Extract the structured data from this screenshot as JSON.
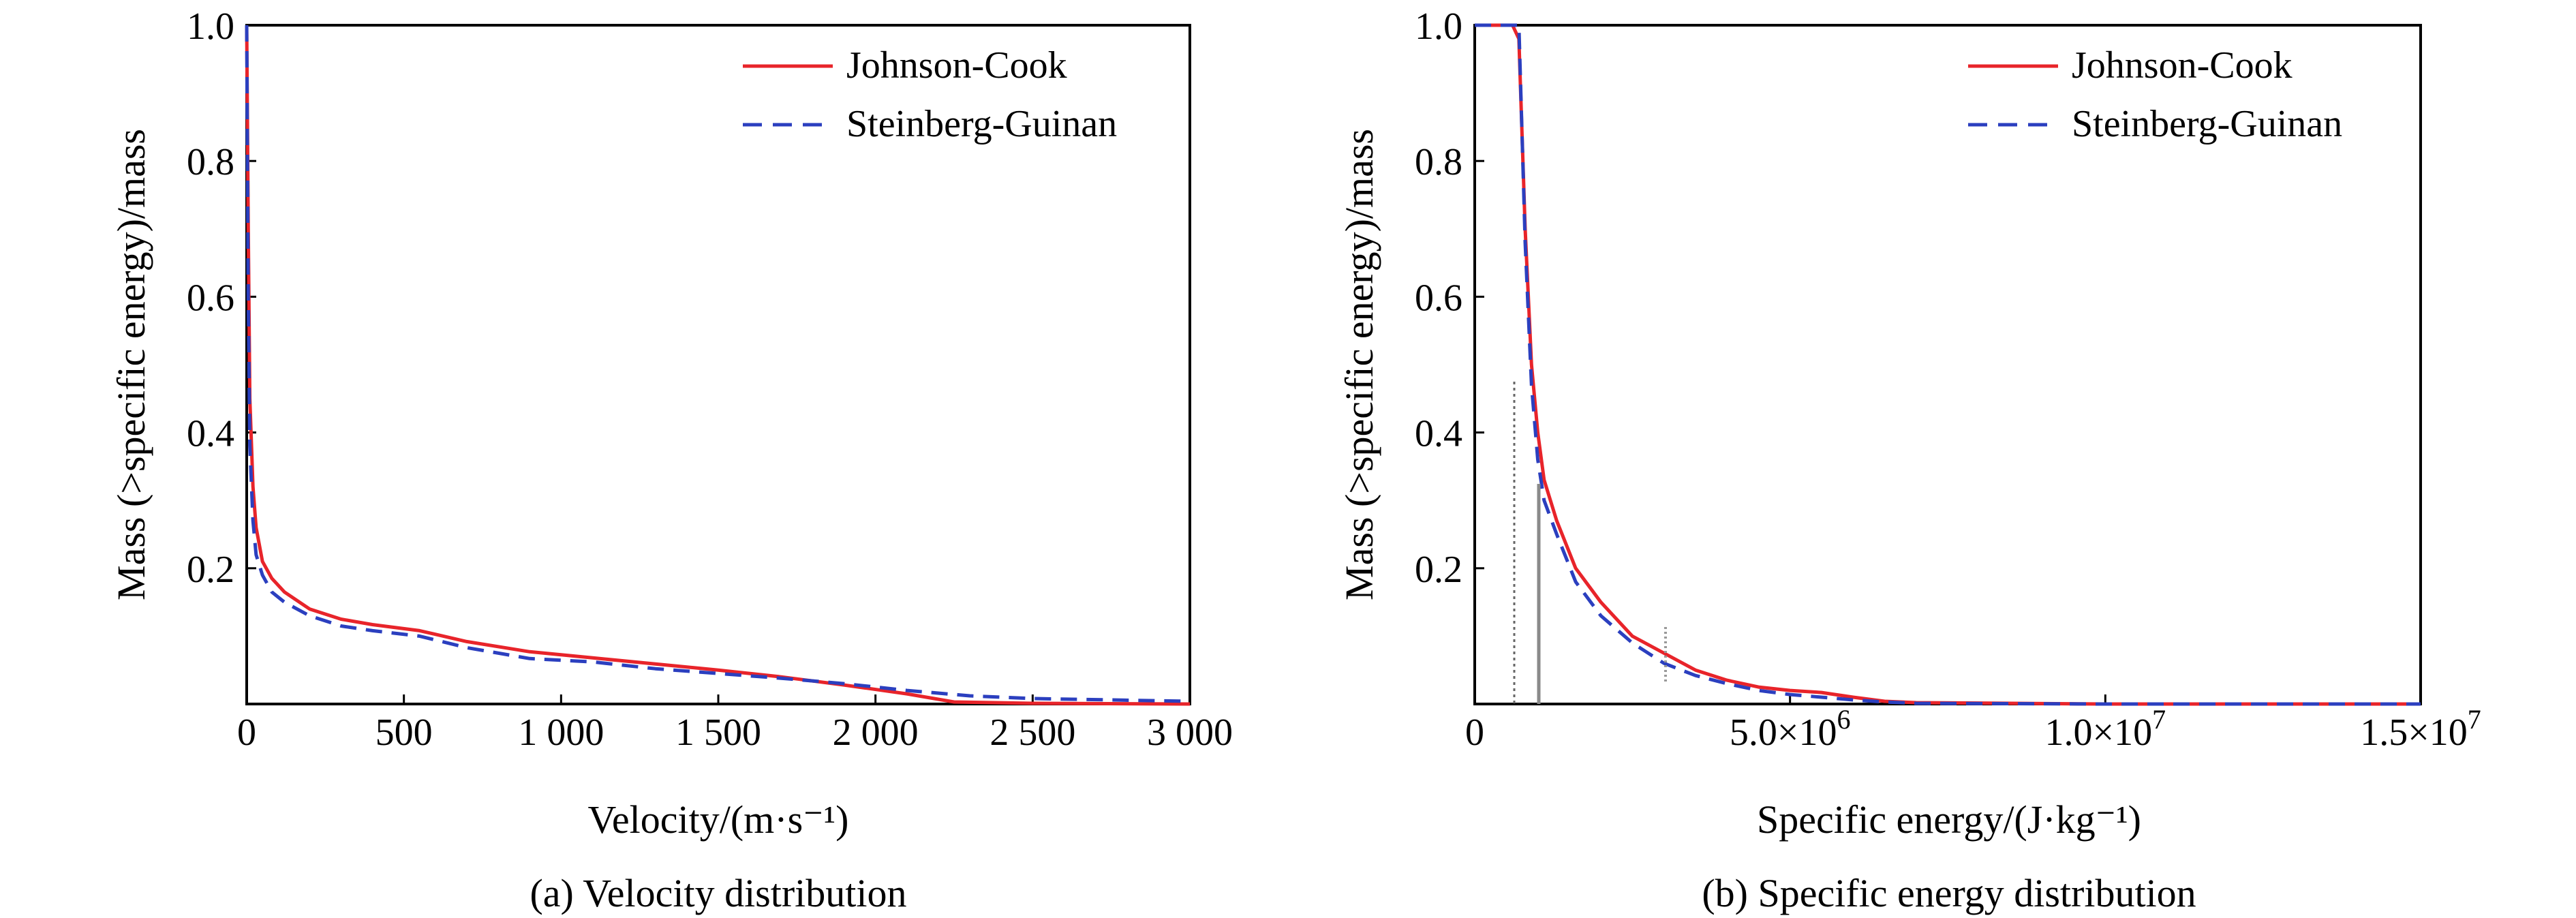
{
  "charts": [
    {
      "caption": "(a) Velocity distribution",
      "xlabel": "Velocity/(m·s⁻¹)",
      "ylabel": "Mass (>specific energy)/mass",
      "legend_entries": [
        "Johnson-Cook",
        "Steinberg-Guinan"
      ]
    },
    {
      "caption": "(b) Specific energy distribution",
      "xlabel": "Specific energy/(J·kg⁻¹)",
      "ylabel": "Mass (>specific energy)/mass",
      "legend_entries": [
        "Johnson-Cook",
        "Steinberg-Guinan"
      ]
    }
  ],
  "chart_data": [
    {
      "type": "line",
      "caption": "(a) Velocity distribution",
      "xlabel": "Velocity/(m·s⁻¹)",
      "ylabel": "Mass (>specific energy)/mass",
      "xlim": [
        0,
        3000
      ],
      "ylim": [
        0,
        1.0
      ],
      "x_ticks": [
        0,
        500,
        1000,
        1500,
        2000,
        2500,
        3000
      ],
      "x_tick_labels": [
        "0",
        "500",
        "1 000",
        "1 500",
        "2 000",
        "2 500",
        "3 000"
      ],
      "y_ticks": [
        0.2,
        0.4,
        0.6,
        0.8,
        1.0
      ],
      "y_tick_labels": [
        "0.2",
        "0.4",
        "0.6",
        "0.8",
        "1.0"
      ],
      "legend_position": "top-right",
      "grid": false,
      "series": [
        {
          "name": "Johnson-Cook",
          "color": "#e8242a",
          "dash": "solid",
          "x": [
            0,
            5,
            10,
            20,
            30,
            50,
            80,
            120,
            200,
            300,
            400,
            550,
            700,
            900,
            1100,
            1300,
            1500,
            1700,
            1900,
            2100,
            2250,
            2500,
            3000
          ],
          "y": [
            1.0,
            0.7,
            0.45,
            0.32,
            0.26,
            0.21,
            0.185,
            0.165,
            0.14,
            0.125,
            0.117,
            0.108,
            0.092,
            0.077,
            0.068,
            0.059,
            0.05,
            0.04,
            0.028,
            0.015,
            0.003,
            0.001,
            0.0
          ]
        },
        {
          "name": "Steinberg-Guinan",
          "color": "#2b3fbf",
          "dash": "dashed",
          "x": [
            0,
            5,
            10,
            20,
            30,
            50,
            80,
            120,
            200,
            300,
            400,
            550,
            700,
            900,
            1100,
            1300,
            1500,
            1700,
            1900,
            2100,
            2300,
            2500,
            3000
          ],
          "y": [
            1.0,
            0.6,
            0.38,
            0.27,
            0.22,
            0.19,
            0.165,
            0.15,
            0.13,
            0.115,
            0.108,
            0.1,
            0.083,
            0.067,
            0.062,
            0.052,
            0.045,
            0.038,
            0.03,
            0.02,
            0.012,
            0.008,
            0.004
          ]
        }
      ]
    },
    {
      "type": "line",
      "caption": "(b) Specific energy distribution",
      "xlabel": "Specific energy/(J·kg⁻¹)",
      "ylabel": "Mass (>specific energy)/mass",
      "xlim": [
        0,
        15000000
      ],
      "ylim": [
        0,
        1.0
      ],
      "x_ticks": [
        0,
        5000000,
        10000000,
        15000000
      ],
      "x_tick_labels": [
        "0",
        "5.0×10",
        "1.0×10",
        "1.5×10"
      ],
      "x_tick_exponents": [
        "",
        "6",
        "7",
        "7"
      ],
      "y_ticks": [
        0.2,
        0.4,
        0.6,
        0.8,
        1.0
      ],
      "y_tick_labels": [
        "0.2",
        "0.4",
        "0.6",
        "0.8",
        "1.0"
      ],
      "legend_position": "top-right",
      "grid": false,
      "series": [
        {
          "name": "Johnson-Cook",
          "color": "#e8242a",
          "dash": "solid",
          "x": [
            0,
            500000,
            600000,
            700000,
            800000,
            900000,
            1000000,
            1100000,
            1300000,
            1600000,
            2000000,
            2500000,
            3000000,
            3500000,
            4000000,
            4500000,
            5000000,
            5500000,
            6000000,
            6500000,
            7000000,
            10000000,
            15000000
          ],
          "y": [
            1.0,
            1.0,
            1.0,
            0.98,
            0.7,
            0.5,
            0.4,
            0.33,
            0.27,
            0.2,
            0.15,
            0.1,
            0.075,
            0.05,
            0.035,
            0.025,
            0.02,
            0.017,
            0.01,
            0.004,
            0.002,
            0.0,
            0.0
          ]
        },
        {
          "name": "Steinberg-Guinan",
          "color": "#2b3fbf",
          "dash": "dashed",
          "x": [
            0,
            500000,
            600000,
            700000,
            800000,
            900000,
            1000000,
            1100000,
            1300000,
            1600000,
            2000000,
            2500000,
            3000000,
            3500000,
            4000000,
            4500000,
            5000000,
            5500000,
            6000000,
            6500000,
            7000000,
            10000000,
            15000000
          ],
          "y": [
            1.0,
            1.0,
            1.0,
            1.0,
            0.68,
            0.47,
            0.36,
            0.3,
            0.25,
            0.18,
            0.13,
            0.09,
            0.06,
            0.042,
            0.03,
            0.02,
            0.014,
            0.01,
            0.006,
            0.003,
            0.001,
            0.0,
            0.0
          ]
        }
      ]
    }
  ]
}
